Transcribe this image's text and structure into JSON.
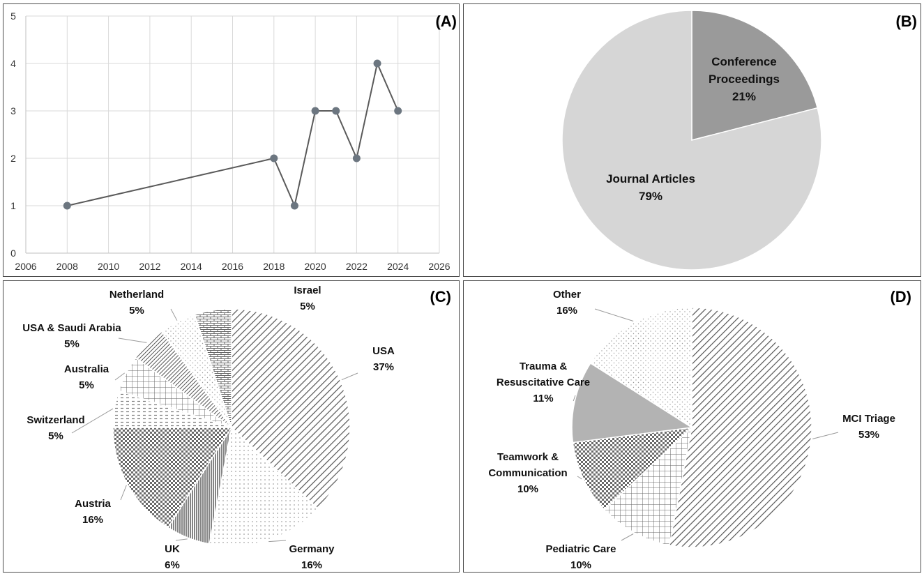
{
  "colors": {
    "line": "#5a5a5a",
    "marker": "#6c7680",
    "grid": "#d9d9d9",
    "pie_dark": "#9a9a9a",
    "pie_light": "#d6d6d6",
    "pattern_ink": "#555555",
    "border": "#4a4a4a"
  },
  "chart_data": [
    {
      "panel": "(A)",
      "type": "line",
      "title": "",
      "xlabel": "",
      "ylabel": "",
      "x": [
        2008,
        2018,
        2019,
        2020,
        2021,
        2022,
        2023,
        2024
      ],
      "y": [
        1,
        2,
        1,
        3,
        3,
        2,
        4,
        3
      ],
      "xlim": [
        2006,
        2026
      ],
      "ylim": [
        0,
        5
      ],
      "xticks": [
        "2006",
        "2008",
        "2010",
        "2012",
        "2014",
        "2016",
        "2018",
        "2020",
        "2022",
        "2024",
        "2026"
      ],
      "yticks": [
        "0",
        "1",
        "2",
        "3",
        "4",
        "5"
      ],
      "grid": true
    },
    {
      "panel": "(B)",
      "type": "pie",
      "slices": [
        {
          "name_lines": [
            "Conference",
            "Proceedings"
          ],
          "pct_label": "21%",
          "value": 21,
          "fill": "dark"
        },
        {
          "name_lines": [
            "Journal Articles"
          ],
          "pct_label": "79%",
          "value": 79,
          "fill": "light"
        }
      ]
    },
    {
      "panel": "(C)",
      "type": "pie",
      "slices": [
        {
          "name_lines": [
            "USA"
          ],
          "pct_label": "37%",
          "value": 37,
          "pattern": "diag"
        },
        {
          "name_lines": [
            "Germany"
          ],
          "pct_label": "16%",
          "value": 16,
          "pattern": "dots"
        },
        {
          "name_lines": [
            "UK"
          ],
          "pct_label": "6%",
          "value": 6,
          "pattern": "vert"
        },
        {
          "name_lines": [
            "Austria"
          ],
          "pct_label": "16%",
          "value": 16,
          "pattern": "check"
        },
        {
          "name_lines": [
            "Switzerland"
          ],
          "pct_label": "5%",
          "value": 5,
          "pattern": "dash"
        },
        {
          "name_lines": [
            "Australia"
          ],
          "pct_label": "5%",
          "value": 5,
          "pattern": "grid"
        },
        {
          "name_lines": [
            "USA & Saudi Arabia"
          ],
          "pct_label": "5%",
          "value": 5,
          "pattern": "diagdense"
        },
        {
          "name_lines": [
            "Netherland"
          ],
          "pct_label": "5%",
          "value": 5,
          "pattern": "sparse"
        },
        {
          "name_lines": [
            "Israel"
          ],
          "pct_label": "5%",
          "value": 5,
          "pattern": "brick"
        }
      ]
    },
    {
      "panel": "(D)",
      "type": "pie",
      "slices": [
        {
          "name_lines": [
            "MCI Triage"
          ],
          "pct_label": "53%",
          "value": 53,
          "pattern": "diag"
        },
        {
          "name_lines": [
            "Pediatric Care"
          ],
          "pct_label": "10%",
          "value": 10,
          "pattern": "grid"
        },
        {
          "name_lines": [
            "Teamwork &",
            "Communication"
          ],
          "pct_label": "10%",
          "value": 10,
          "pattern": "check"
        },
        {
          "name_lines": [
            "Trauma &",
            "Resuscitative Care"
          ],
          "pct_label": "11%",
          "value": 11,
          "pattern": "gray"
        },
        {
          "name_lines": [
            "Other"
          ],
          "pct_label": "16%",
          "value": 16,
          "pattern": "sparse"
        }
      ]
    }
  ]
}
